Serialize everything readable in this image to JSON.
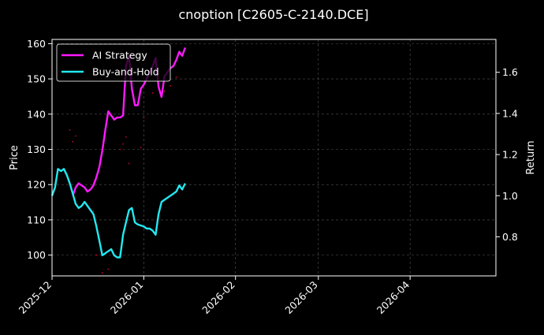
{
  "chart_data": {
    "type": "line",
    "title": "cnoption [C2605-C-2140.DCE]",
    "xlabel": "",
    "ylabel": "Price",
    "y2label": "Return",
    "grid": true,
    "legend_position": "top-left",
    "xlim": [
      "2025-12-01",
      "2026-04-30"
    ],
    "x_ticks": [
      "2025-12",
      "2026-01",
      "2026-02",
      "2026-03",
      "2026-04"
    ],
    "ylim": [
      94.1,
      161.2
    ],
    "y_ticks": [
      100,
      110,
      120,
      130,
      140,
      150,
      160
    ],
    "y2lim": [
      0.61,
      1.76
    ],
    "y2_ticks": [
      0.8,
      1.0,
      1.2,
      1.4,
      1.6
    ],
    "colors": {
      "background": "#000000",
      "foreground": "#ffffff",
      "grid": "#555555",
      "ai_strategy": "#ff1aff",
      "buy_and_hold": "#22e8f0",
      "price_dots": "#cc0033"
    },
    "series": [
      {
        "name": "AI Strategy",
        "axis": "right",
        "color": "#ff1aff",
        "points": [
          [
            "2025-12-08",
            1.0
          ],
          [
            "2025-12-09",
            1.04
          ],
          [
            "2025-12-10",
            1.06
          ],
          [
            "2025-12-11",
            1.05
          ],
          [
            "2025-12-12",
            1.04
          ],
          [
            "2025-12-13",
            1.02
          ],
          [
            "2025-12-14",
            1.03
          ],
          [
            "2025-12-15",
            1.05
          ],
          [
            "2025-12-16",
            1.09
          ],
          [
            "2025-12-17",
            1.14
          ],
          [
            "2025-12-18",
            1.22
          ],
          [
            "2025-12-19",
            1.32
          ],
          [
            "2025-12-20",
            1.41
          ],
          [
            "2025-12-21",
            1.39
          ],
          [
            "2025-12-22",
            1.37
          ],
          [
            "2025-12-23",
            1.38
          ],
          [
            "2025-12-24",
            1.38
          ],
          [
            "2025-12-25",
            1.39
          ],
          [
            "2025-12-26",
            1.63
          ],
          [
            "2025-12-27",
            1.68
          ],
          [
            "2025-12-28",
            1.52
          ],
          [
            "2025-12-29",
            1.44
          ],
          [
            "2025-12-30",
            1.44
          ],
          [
            "2025-12-31",
            1.52
          ],
          [
            "2026-01-01",
            1.54
          ],
          [
            "2026-01-02",
            1.57
          ],
          [
            "2026-01-03",
            1.6
          ],
          [
            "2026-01-04",
            1.63
          ],
          [
            "2026-01-05",
            1.67
          ],
          [
            "2026-01-06",
            1.53
          ],
          [
            "2026-01-07",
            1.48
          ],
          [
            "2026-01-08",
            1.58
          ],
          [
            "2026-01-09",
            1.6
          ],
          [
            "2026-01-10",
            1.62
          ],
          [
            "2026-01-11",
            1.63
          ],
          [
            "2026-01-12",
            1.66
          ],
          [
            "2026-01-13",
            1.7
          ],
          [
            "2026-01-14",
            1.68
          ],
          [
            "2026-01-15",
            1.72
          ]
        ]
      },
      {
        "name": "Buy-and-Hold",
        "axis": "right",
        "color": "#22e8f0",
        "points": [
          [
            "2025-12-01",
            1.0
          ],
          [
            "2025-12-02",
            1.04
          ],
          [
            "2025-12-03",
            1.13
          ],
          [
            "2025-12-04",
            1.12
          ],
          [
            "2025-12-05",
            1.13
          ],
          [
            "2025-12-06",
            1.1
          ],
          [
            "2025-12-07",
            1.06
          ],
          [
            "2025-12-08",
            1.01
          ],
          [
            "2025-12-09",
            0.96
          ],
          [
            "2025-12-10",
            0.94
          ],
          [
            "2025-12-11",
            0.95
          ],
          [
            "2025-12-12",
            0.97
          ],
          [
            "2025-12-13",
            0.95
          ],
          [
            "2025-12-14",
            0.93
          ],
          [
            "2025-12-15",
            0.91
          ],
          [
            "2025-12-16",
            0.85
          ],
          [
            "2025-12-17",
            0.78
          ],
          [
            "2025-12-18",
            0.71
          ],
          [
            "2025-12-19",
            0.72
          ],
          [
            "2025-12-20",
            0.73
          ],
          [
            "2025-12-21",
            0.74
          ],
          [
            "2025-12-22",
            0.71
          ],
          [
            "2025-12-23",
            0.7
          ],
          [
            "2025-12-24",
            0.7
          ],
          [
            "2025-12-25",
            0.81
          ],
          [
            "2025-12-26",
            0.87
          ],
          [
            "2025-12-27",
            0.93
          ],
          [
            "2025-12-28",
            0.94
          ],
          [
            "2025-12-29",
            0.87
          ],
          [
            "2025-12-30",
            0.86
          ],
          [
            "2026-01-01",
            0.85
          ],
          [
            "2026-01-02",
            0.84
          ],
          [
            "2026-01-03",
            0.84
          ],
          [
            "2026-01-04",
            0.83
          ],
          [
            "2026-01-05",
            0.81
          ],
          [
            "2026-01-06",
            0.91
          ],
          [
            "2026-01-07",
            0.97
          ],
          [
            "2026-01-08",
            0.98
          ],
          [
            "2026-01-09",
            0.99
          ],
          [
            "2026-01-10",
            1.0
          ],
          [
            "2026-01-11",
            1.01
          ],
          [
            "2026-01-12",
            1.02
          ],
          [
            "2026-01-13",
            1.05
          ],
          [
            "2026-01-14",
            1.03
          ],
          [
            "2026-01-15",
            1.06
          ]
        ]
      },
      {
        "name": "",
        "axis": "left",
        "kind": "markers",
        "color": "#cc0033",
        "points": [
          [
            "2025-12-07",
            135.5
          ],
          [
            "2025-12-08",
            132.2
          ],
          [
            "2025-12-09",
            133.8
          ],
          [
            "2025-12-15",
            112.5
          ],
          [
            "2025-12-16",
            100.0
          ],
          [
            "2025-12-18",
            95.0
          ],
          [
            "2025-12-20",
            96.0
          ],
          [
            "2025-12-24",
            130.0
          ],
          [
            "2025-12-25",
            131.5
          ],
          [
            "2025-12-26",
            133.5
          ],
          [
            "2025-12-27",
            126.0
          ],
          [
            "2025-12-31",
            130.5
          ],
          [
            "2026-01-01",
            139.0
          ],
          [
            "2026-01-04",
            146.0
          ],
          [
            "2026-01-06",
            150.5
          ],
          [
            "2026-01-08",
            146.5
          ],
          [
            "2026-01-10",
            148.0
          ],
          [
            "2026-01-12",
            150.5
          ]
        ]
      }
    ]
  }
}
